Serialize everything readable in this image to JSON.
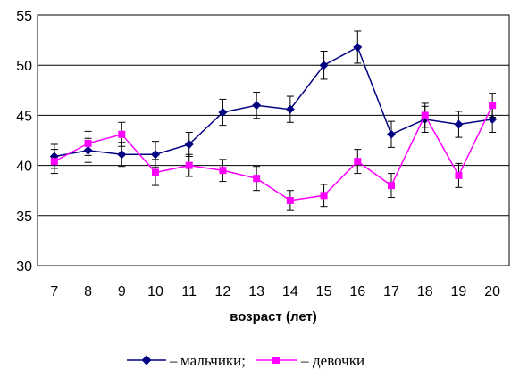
{
  "chart_data": {
    "type": "line",
    "title": "",
    "xlabel": "возраст (лет)",
    "ylabel": "",
    "x": [
      7,
      8,
      9,
      10,
      11,
      12,
      13,
      14,
      15,
      16,
      17,
      18,
      19,
      20
    ],
    "ylim": [
      30,
      55
    ],
    "yticks": [
      30,
      35,
      40,
      45,
      50,
      55
    ],
    "grid": true,
    "legend_placement": "bottom-center",
    "legend_text": {
      "dash1": "–",
      "boys_label": "мальчики;",
      "dash2": "–",
      "girls_label": "девочки"
    },
    "series": [
      {
        "name": "мальчики",
        "color": "#000080",
        "marker": "diamond",
        "values": [
          40.9,
          41.5,
          41.1,
          41.1,
          42.1,
          45.3,
          46.0,
          45.6,
          50.0,
          51.8,
          43.1,
          44.6,
          44.1,
          44.6
        ],
        "errors": [
          1.2,
          1.2,
          1.2,
          1.3,
          1.2,
          1.3,
          1.3,
          1.3,
          1.4,
          1.6,
          1.3,
          1.3,
          1.3,
          1.3
        ]
      },
      {
        "name": "девочки",
        "color": "#ff00ff",
        "marker": "square",
        "values": [
          40.4,
          42.2,
          43.1,
          39.3,
          40.0,
          39.5,
          38.7,
          36.5,
          37.0,
          40.4,
          38.0,
          45.0,
          39.0,
          46.0
        ],
        "errors": [
          1.2,
          1.2,
          1.2,
          1.3,
          1.1,
          1.1,
          1.2,
          1.0,
          1.1,
          1.2,
          1.2,
          1.2,
          1.2,
          1.2
        ]
      }
    ]
  }
}
